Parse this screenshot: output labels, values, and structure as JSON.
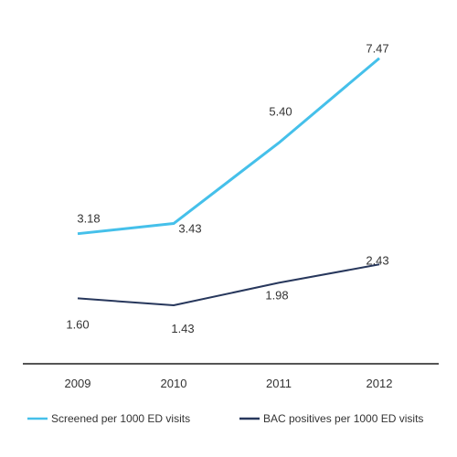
{
  "chart_data": {
    "type": "line",
    "categories": [
      "2009",
      "2010",
      "2011",
      "2012"
    ],
    "series": [
      {
        "name": "Screened per 1000 ED visits",
        "values": [
          3.18,
          3.43,
          5.4,
          7.47
        ],
        "labels": [
          "3.18",
          "3.43",
          "5.40",
          "7.47"
        ],
        "color": "#45c0ea"
      },
      {
        "name": "BAC positives per 1000 ED visits",
        "values": [
          1.6,
          1.43,
          1.98,
          2.43
        ],
        "labels": [
          "1.60",
          "1.43",
          "1.98",
          "2.43"
        ],
        "color": "#27375c"
      }
    ],
    "ylim": [
      0,
      8
    ],
    "grid": false,
    "legend": "bottom"
  }
}
